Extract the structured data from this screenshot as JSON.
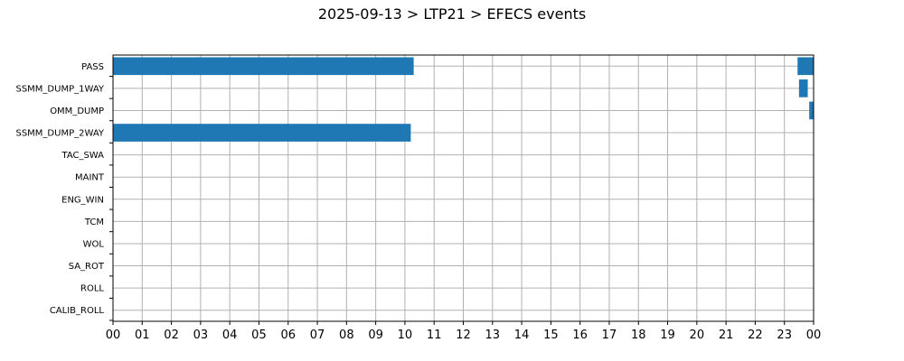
{
  "chart_data": {
    "type": "bar",
    "orientation": "horizontal-timeline",
    "title": "2025-09-13 > LTP21 > EFECS events",
    "xlabel": "",
    "ylabel": "",
    "x_unit": "hour",
    "xlim": [
      0,
      24
    ],
    "x_tick_labels": [
      "00",
      "01",
      "02",
      "03",
      "04",
      "05",
      "06",
      "07",
      "08",
      "09",
      "10",
      "11",
      "12",
      "13",
      "14",
      "15",
      "16",
      "17",
      "18",
      "19",
      "20",
      "21",
      "22",
      "23",
      "00"
    ],
    "grid": true,
    "bar_color": "#1f77b4",
    "categories": [
      "PASS",
      "SSMM_DUMP_1WAY",
      "OMM_DUMP",
      "SSMM_DUMP_2WAY",
      "TAC_SWA",
      "MAINT",
      "ENG_WIN",
      "TCM",
      "WOL",
      "SA_ROT",
      "ROLL",
      "CALIB_ROLL"
    ],
    "events": [
      {
        "category": "PASS",
        "start": 0.0,
        "end": 10.3
      },
      {
        "category": "PASS",
        "start": 23.45,
        "end": 24.0
      },
      {
        "category": "SSMM_DUMP_1WAY",
        "start": 23.5,
        "end": 23.8
      },
      {
        "category": "OMM_DUMP",
        "start": 23.85,
        "end": 24.0
      },
      {
        "category": "SSMM_DUMP_2WAY",
        "start": 0.0,
        "end": 10.2
      }
    ]
  }
}
